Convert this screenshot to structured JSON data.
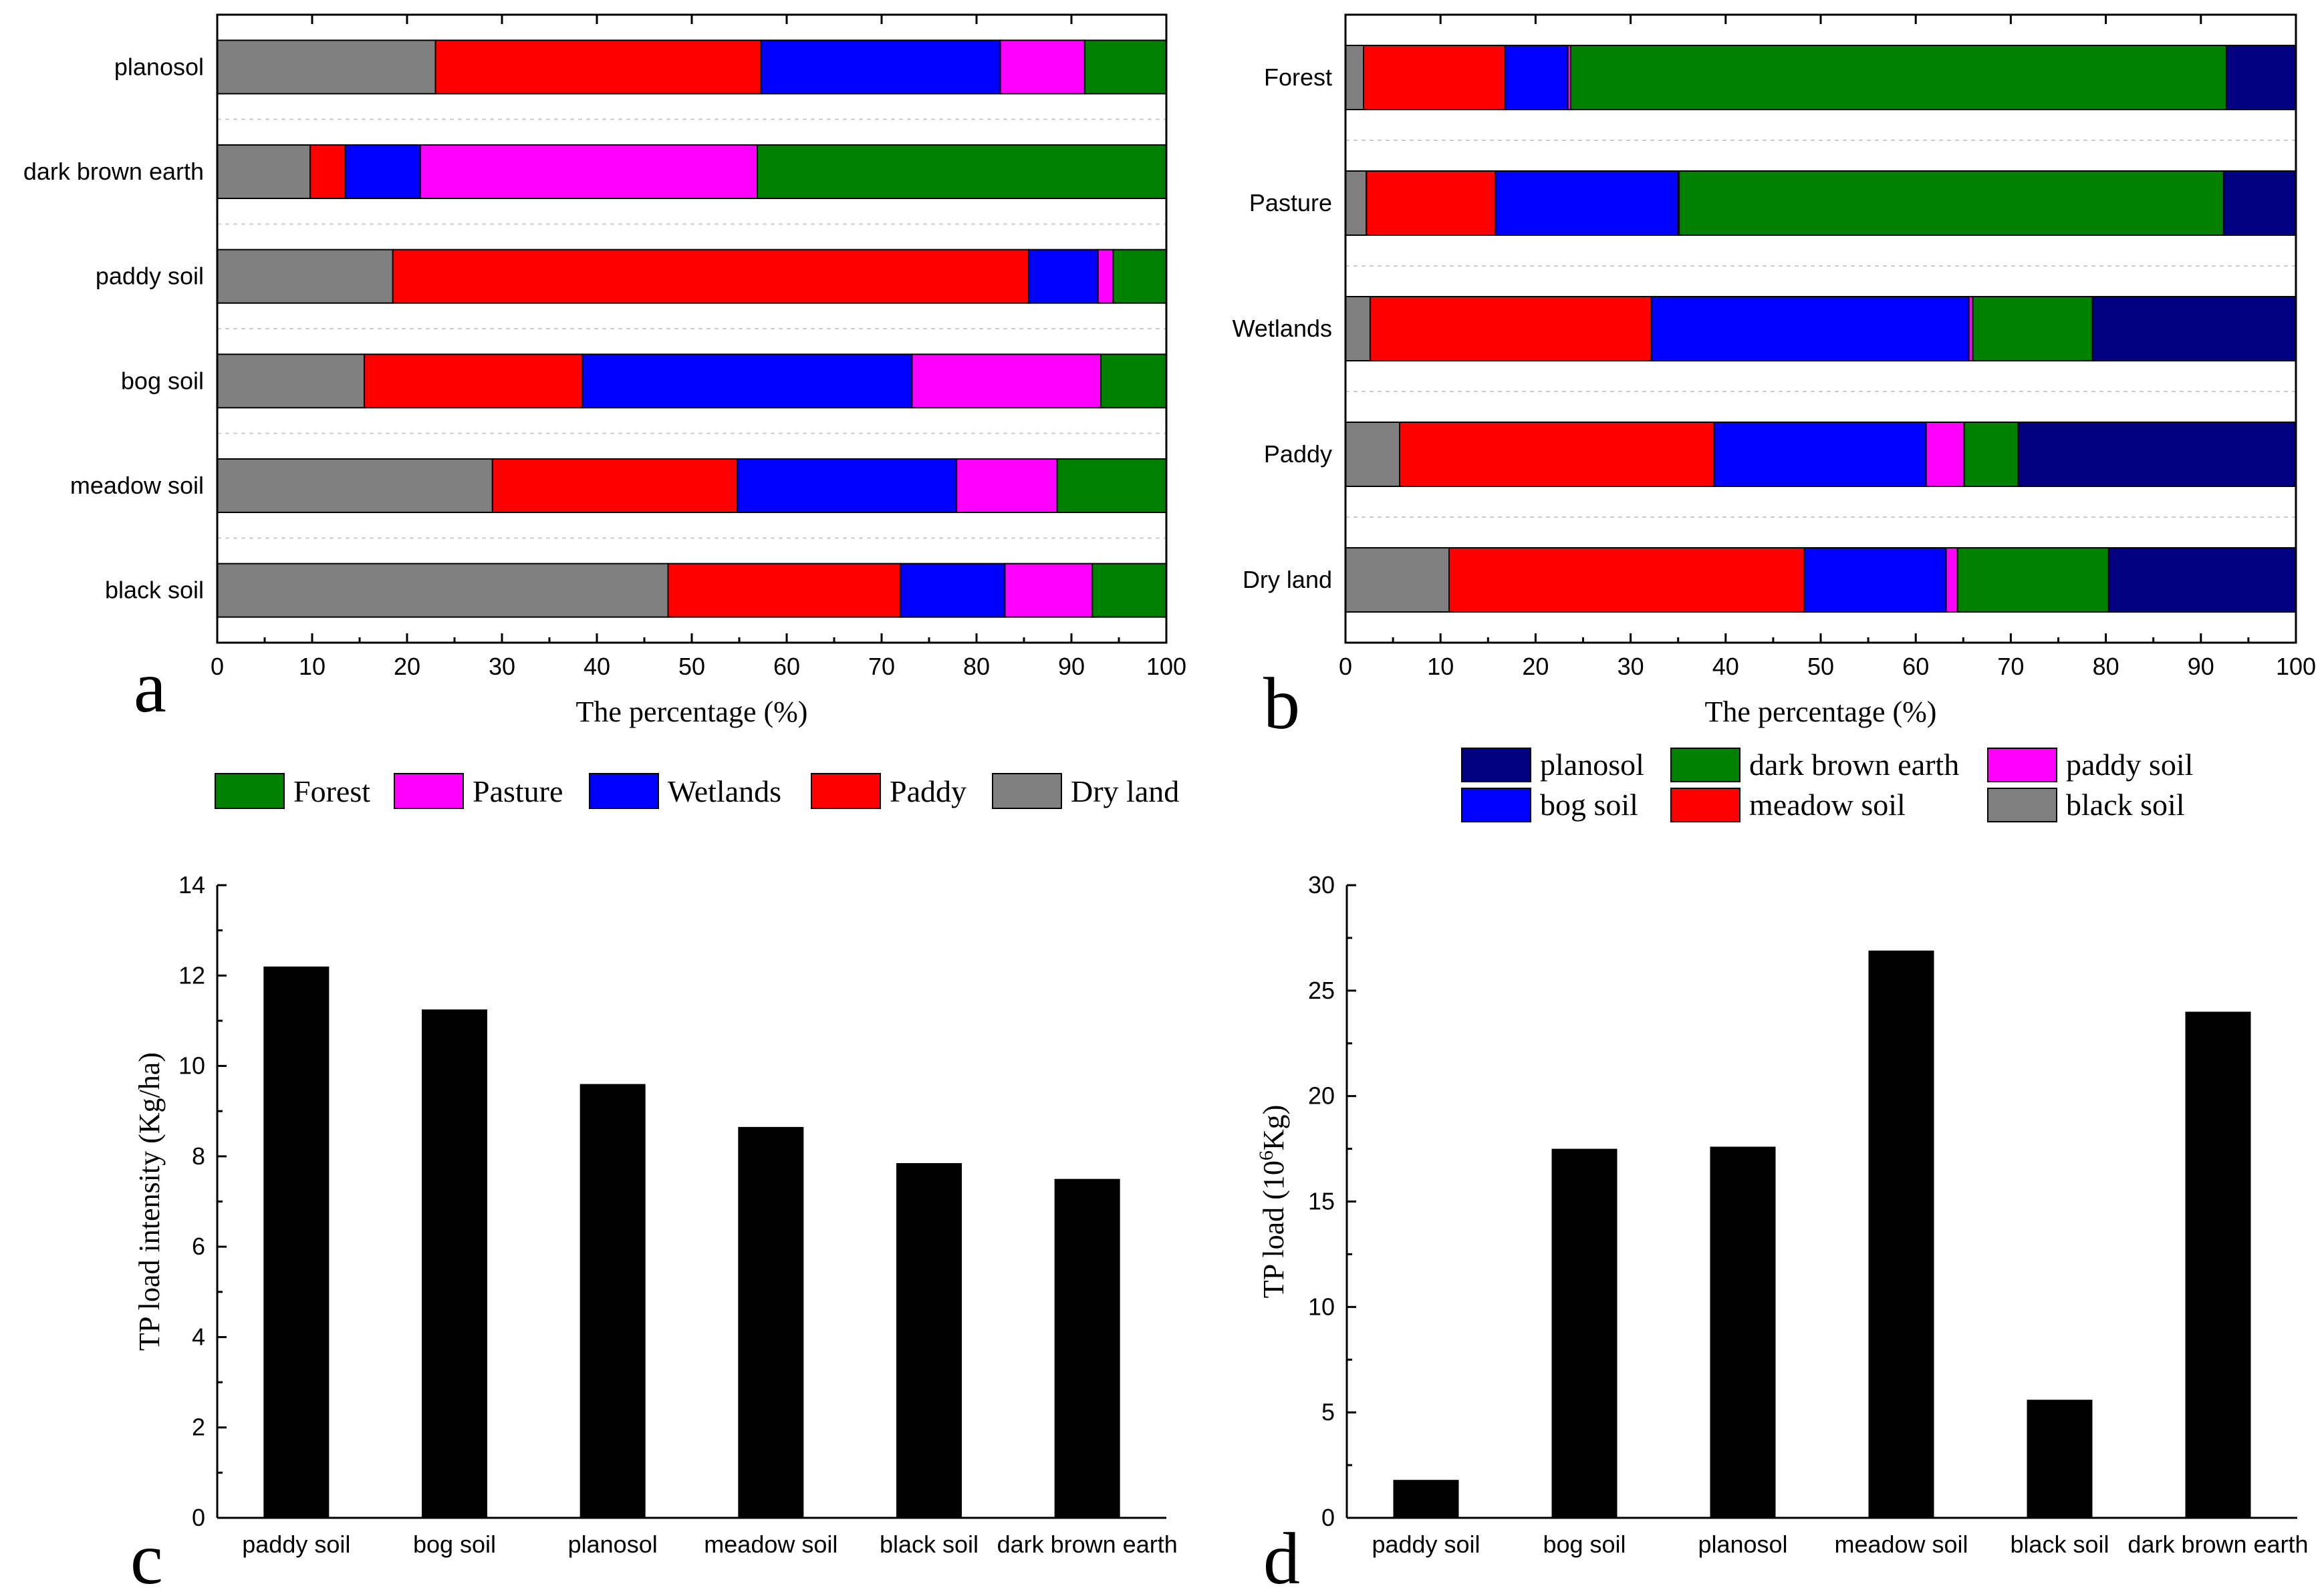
{
  "colors": {
    "Forest": "#008000",
    "Pasture": "#ff00ff",
    "Wetlands": "#0000ff",
    "Paddy": "#ff0000",
    "Dry land": "#808080",
    "planosol": "#000080",
    "dark brown earth": "#008000",
    "paddy soil": "#ff00ff",
    "bog soil": "#0000ff",
    "meadow soil": "#ff0000",
    "black soil": "#808080",
    "bar": "#000000"
  },
  "chart_data": [
    {
      "id": "a",
      "panel_label": "a",
      "type": "bar",
      "orientation": "horizontal-stacked",
      "xlabel": "The percentage (%)",
      "xlim": [
        0,
        100
      ],
      "xticks": [
        "0",
        "10",
        "20",
        "30",
        "40",
        "50",
        "60",
        "70",
        "80",
        "90",
        "100"
      ],
      "categories": [
        "planosol",
        "dark brown earth",
        "paddy soil",
        "bog soil",
        "meadow soil",
        "black soil"
      ],
      "series": [
        {
          "name": "Dry land",
          "values": [
            23.0,
            9.8,
            18.5,
            15.5,
            29.0,
            47.5
          ]
        },
        {
          "name": "Paddy",
          "values": [
            34.3,
            3.7,
            67.0,
            23.0,
            25.8,
            24.5
          ]
        },
        {
          "name": "Wetlands",
          "values": [
            25.2,
            7.9,
            7.3,
            34.7,
            23.1,
            11.0
          ]
        },
        {
          "name": "Pasture",
          "values": [
            8.9,
            35.5,
            1.6,
            19.9,
            10.6,
            9.2
          ]
        },
        {
          "name": "Forest",
          "values": [
            8.6,
            43.1,
            5.6,
            6.9,
            11.5,
            7.8
          ]
        }
      ],
      "legend": [
        "Forest",
        "Pasture",
        "Wetlands",
        "Paddy",
        "Dry land"
      ],
      "legend_position": "bottom"
    },
    {
      "id": "b",
      "panel_label": "b",
      "type": "bar",
      "orientation": "horizontal-stacked",
      "xlabel": "The percentage (%)",
      "xlim": [
        0,
        100
      ],
      "xticks": [
        "0",
        "10",
        "20",
        "30",
        "40",
        "50",
        "60",
        "70",
        "80",
        "90",
        "100"
      ],
      "categories": [
        "Forest",
        "Pasture",
        "Wetlands",
        "Paddy",
        "Dry land"
      ],
      "series": [
        {
          "name": "black soil",
          "values": [
            1.9,
            2.2,
            2.6,
            5.7,
            10.9
          ]
        },
        {
          "name": "meadow soil",
          "values": [
            14.9,
            13.6,
            29.6,
            33.1,
            37.4
          ]
        },
        {
          "name": "bog soil",
          "values": [
            6.6,
            19.2,
            33.4,
            22.3,
            14.9
          ]
        },
        {
          "name": "paddy soil",
          "values": [
            0.3,
            0.1,
            0.4,
            4.0,
            1.2
          ]
        },
        {
          "name": "dark brown earth",
          "values": [
            69.0,
            57.3,
            12.6,
            5.7,
            15.9
          ]
        },
        {
          "name": "planosol",
          "values": [
            7.3,
            7.6,
            21.4,
            29.2,
            19.7
          ]
        }
      ],
      "legend": [
        "planosol",
        "dark brown earth",
        "paddy soil",
        "bog soil",
        "meadow soil",
        "black soil"
      ],
      "legend_position": "bottom"
    },
    {
      "id": "c",
      "panel_label": "c",
      "type": "bar",
      "orientation": "vertical",
      "ylabel": "TP load intensity (Kg/ha)",
      "ylim": [
        0,
        14
      ],
      "yticks": [
        "0",
        "2",
        "4",
        "6",
        "8",
        "10",
        "12",
        "14"
      ],
      "categories": [
        "paddy soil",
        "bog soil",
        "planosol",
        "meadow soil",
        "black soil",
        "dark brown earth"
      ],
      "values": [
        12.2,
        11.25,
        9.6,
        8.65,
        7.85,
        7.5
      ]
    },
    {
      "id": "d",
      "panel_label": "d",
      "type": "bar",
      "orientation": "vertical",
      "ylabel_main": "TP load (10",
      "ylabel_sup": "6",
      "ylabel_tail": "Kg)",
      "ylim": [
        0,
        30
      ],
      "yticks": [
        "0",
        "5",
        "10",
        "15",
        "20",
        "25",
        "30"
      ],
      "categories": [
        "paddy soil",
        "bog soil",
        "planosol",
        "meadow soil",
        "black soil",
        "dark brown earth"
      ],
      "values": [
        1.8,
        17.5,
        17.6,
        26.9,
        5.6,
        24.0
      ]
    }
  ]
}
